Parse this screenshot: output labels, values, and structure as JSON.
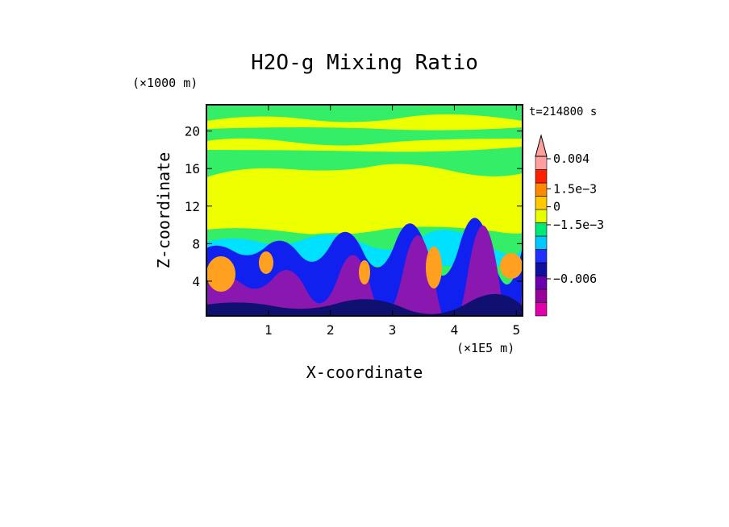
{
  "chart_data": {
    "type": "heatmap",
    "title": "H2O-g Mixing Ratio",
    "xlabel": "X-coordinate",
    "ylabel": "Z-coordinate",
    "x_unit": "(×1E5 m)",
    "y_unit": "(×1000 m)",
    "time_label": "t=214800 s",
    "xlim": [
      0.0,
      5.1
    ],
    "ylim": [
      0.3,
      22.8
    ],
    "x_ticks": [
      1,
      2,
      3,
      4,
      5
    ],
    "y_ticks": [
      4,
      8,
      12,
      16,
      20
    ],
    "colorbar": {
      "labels": [
        {
          "text": "0.004",
          "value": 0.004
        },
        {
          "text": "1.5e−3",
          "value": 0.0015
        },
        {
          "text": "0",
          "value": 0
        },
        {
          "text": "−1.5e−3",
          "value": -0.0015
        },
        {
          "text": "−0.006",
          "value": -0.006
        }
      ],
      "colors": [
        "#e000a8",
        "#9a009a",
        "#6a00b0",
        "#1010a0",
        "#2030ff",
        "#00c8ff",
        "#00e878",
        "#e8ff00",
        "#ffc800",
        "#ff8800",
        "#ff2000",
        "#ffa0a0"
      ]
    },
    "colors": {
      "upper_green": "#33ee66",
      "mid_yellow": "#eeff00",
      "cyan": "#00e0ff",
      "blue": "#1020ee",
      "purple": "#8a18b0",
      "orange": "#ffa020",
      "dark_navy": "#101070"
    },
    "grid": false
  }
}
